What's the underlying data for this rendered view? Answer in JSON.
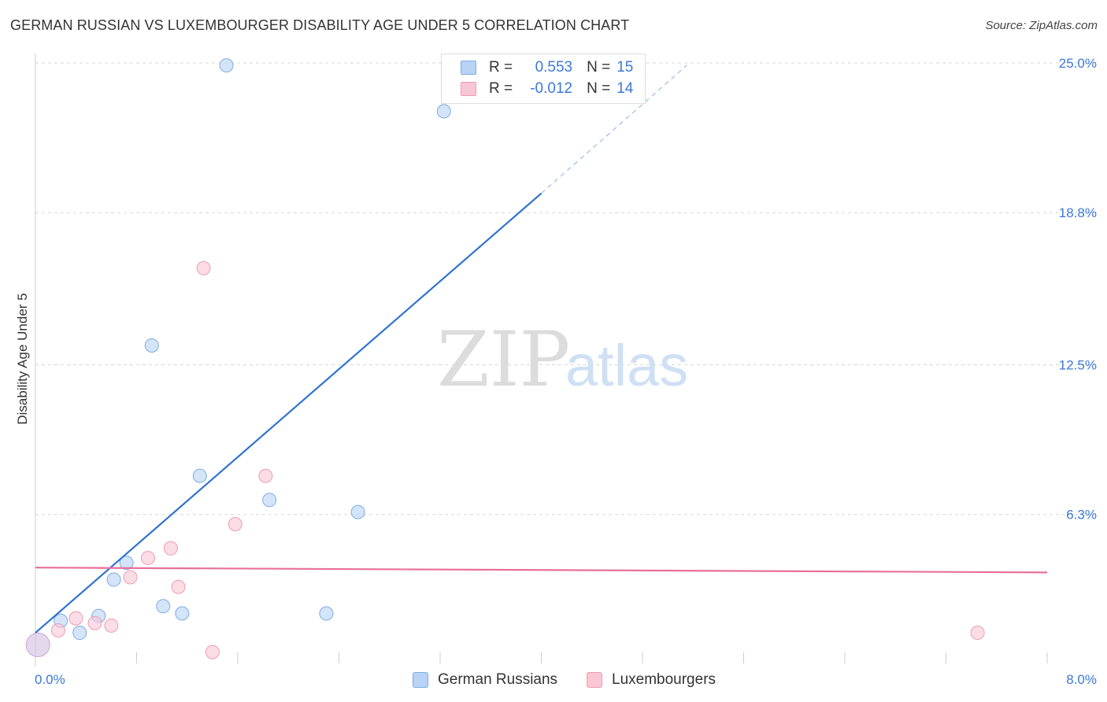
{
  "title": "GERMAN RUSSIAN VS LUXEMBOURGER DISABILITY AGE UNDER 5 CORRELATION CHART",
  "source": "Source: ZipAtlas.com",
  "watermark": {
    "zip": "ZIP",
    "atlas": "atlas"
  },
  "colors": {
    "blue_fill": "#b8d3f5",
    "blue_stroke": "#7eaae2",
    "blue_line": "#2f72d2",
    "pink_fill": "#f8c6d4",
    "pink_stroke": "#ee9cb4",
    "pink_line": "#e8709a",
    "grid": "#d8d8d8",
    "tick_label": "#3d78d8"
  },
  "legend": {
    "r_label": "R =",
    "n_label": "N =",
    "series": [
      {
        "r": "0.553",
        "n": "15"
      },
      {
        "r": "-0.012",
        "n": "14"
      }
    ]
  },
  "chart_data": {
    "type": "scatter",
    "title": "GERMAN RUSSIAN VS LUXEMBOURGER DISABILITY AGE UNDER 5 CORRELATION CHART",
    "xlabel": "",
    "ylabel": "Disability Age Under 5",
    "xlim": [
      0,
      8.0
    ],
    "ylim": [
      0,
      25.0
    ],
    "x_tick_labels": [
      "0.0%",
      "8.0%"
    ],
    "y_ticks": [
      6.3,
      12.5,
      18.8,
      25.0
    ],
    "y_tick_labels": [
      "6.3%",
      "12.5%",
      "18.8%",
      "25.0%"
    ],
    "series": [
      {
        "name": "German Russians",
        "color": "blue",
        "points": [
          {
            "x": 0.02,
            "y": 0.9
          },
          {
            "x": 0.2,
            "y": 1.9
          },
          {
            "x": 0.35,
            "y": 1.4
          },
          {
            "x": 0.5,
            "y": 2.1
          },
          {
            "x": 0.62,
            "y": 3.6
          },
          {
            "x": 0.72,
            "y": 4.3
          },
          {
            "x": 0.92,
            "y": 13.3
          },
          {
            "x": 1.01,
            "y": 2.5
          },
          {
            "x": 1.16,
            "y": 2.2
          },
          {
            "x": 1.3,
            "y": 7.9
          },
          {
            "x": 1.51,
            "y": 24.9
          },
          {
            "x": 1.85,
            "y": 6.9
          },
          {
            "x": 2.3,
            "y": 2.2
          },
          {
            "x": 2.55,
            "y": 6.4
          },
          {
            "x": 3.23,
            "y": 23.0
          }
        ],
        "trend": {
          "x0": 0.0,
          "y0": 1.4,
          "x1": 4.0,
          "y1": 19.6,
          "dash_x1": 5.15,
          "dash_y1": 24.9
        }
      },
      {
        "name": "Luxembourgers",
        "color": "pink",
        "points": [
          {
            "x": 0.02,
            "y": 0.9
          },
          {
            "x": 0.18,
            "y": 1.5
          },
          {
            "x": 0.32,
            "y": 2.0
          },
          {
            "x": 0.47,
            "y": 1.8
          },
          {
            "x": 0.6,
            "y": 1.7
          },
          {
            "x": 0.75,
            "y": 3.7
          },
          {
            "x": 0.89,
            "y": 4.5
          },
          {
            "x": 1.07,
            "y": 4.9
          },
          {
            "x": 1.13,
            "y": 3.3
          },
          {
            "x": 1.33,
            "y": 16.5
          },
          {
            "x": 1.4,
            "y": 0.6
          },
          {
            "x": 1.58,
            "y": 5.9
          },
          {
            "x": 1.82,
            "y": 7.9
          },
          {
            "x": 7.45,
            "y": 1.4
          }
        ],
        "trend": {
          "x0": 0.0,
          "y0": 4.1,
          "x1": 8.0,
          "y1": 3.9
        }
      }
    ]
  }
}
